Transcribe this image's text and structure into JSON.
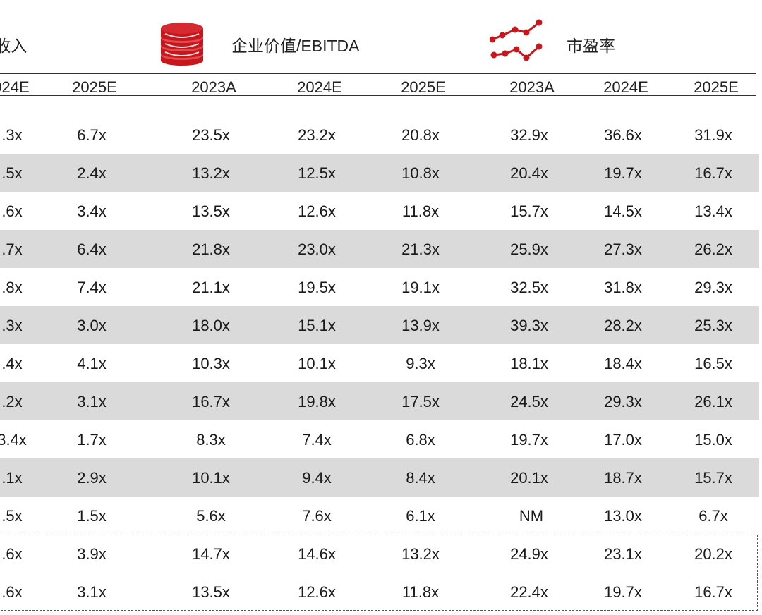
{
  "headers": {
    "revenue_partial": "/收入",
    "ev_ebitda": "企业价值/EBITDA",
    "pe": "市盈率"
  },
  "years": [
    "024E",
    "2025E",
    "2023A",
    "2024E",
    "2025E",
    "2023A",
    "2024E",
    "2025E"
  ],
  "rows": [
    {
      "cells": [
        ".3x",
        "6.7x",
        "23.5x",
        "23.2x",
        "20.8x",
        "32.9x",
        "36.6x",
        "31.9x"
      ],
      "shaded": false
    },
    {
      "cells": [
        ".5x",
        "2.4x",
        "13.2x",
        "12.5x",
        "10.8x",
        "20.4x",
        "19.7x",
        "16.7x"
      ],
      "shaded": true
    },
    {
      "cells": [
        ".6x",
        "3.4x",
        "13.5x",
        "12.6x",
        "11.8x",
        "15.7x",
        "14.5x",
        "13.4x"
      ],
      "shaded": false
    },
    {
      "cells": [
        ".7x",
        "6.4x",
        "21.8x",
        "23.0x",
        "21.3x",
        "25.9x",
        "27.3x",
        "26.2x"
      ],
      "shaded": true
    },
    {
      "cells": [
        ".8x",
        "7.4x",
        "21.1x",
        "19.5x",
        "19.1x",
        "32.5x",
        "31.8x",
        "29.3x"
      ],
      "shaded": false
    },
    {
      "cells": [
        ".3x",
        "3.0x",
        "18.0x",
        "15.1x",
        "13.9x",
        "39.3x",
        "28.2x",
        "25.3x"
      ],
      "shaded": true
    },
    {
      "cells": [
        ".4x",
        "4.1x",
        "10.3x",
        "10.1x",
        "9.3x",
        "18.1x",
        "18.4x",
        "16.5x"
      ],
      "shaded": false
    },
    {
      "cells": [
        ".2x",
        "3.1x",
        "16.7x",
        "19.8x",
        "17.5x",
        "24.5x",
        "29.3x",
        "26.1x"
      ],
      "shaded": true
    },
    {
      "cells": [
        "3.4x",
        "1.7x",
        "8.3x",
        "7.4x",
        "6.8x",
        "19.7x",
        "17.0x",
        "15.0x"
      ],
      "shaded": false
    },
    {
      "cells": [
        ".1x",
        "2.9x",
        "10.1x",
        "9.4x",
        "8.4x",
        "20.1x",
        "18.7x",
        "15.7x"
      ],
      "shaded": true
    },
    {
      "cells": [
        ".5x",
        "1.5x",
        "5.6x",
        "7.6x",
        "6.1x",
        "NM",
        "13.0x",
        "6.7x"
      ],
      "shaded": false
    },
    {
      "cells": [
        ".6x",
        "3.9x",
        "14.7x",
        "14.6x",
        "13.2x",
        "24.9x",
        "23.1x",
        "20.2x"
      ],
      "shaded": false
    },
    {
      "cells": [
        ".6x",
        "3.1x",
        "13.5x",
        "12.6x",
        "11.8x",
        "22.4x",
        "19.7x",
        "16.7x"
      ],
      "shaded": false
    }
  ],
  "colors": {
    "accent_red": "#c8161d",
    "row_shade": "#dadada"
  },
  "icons": [
    "coins-icon",
    "line-chart-icon"
  ]
}
